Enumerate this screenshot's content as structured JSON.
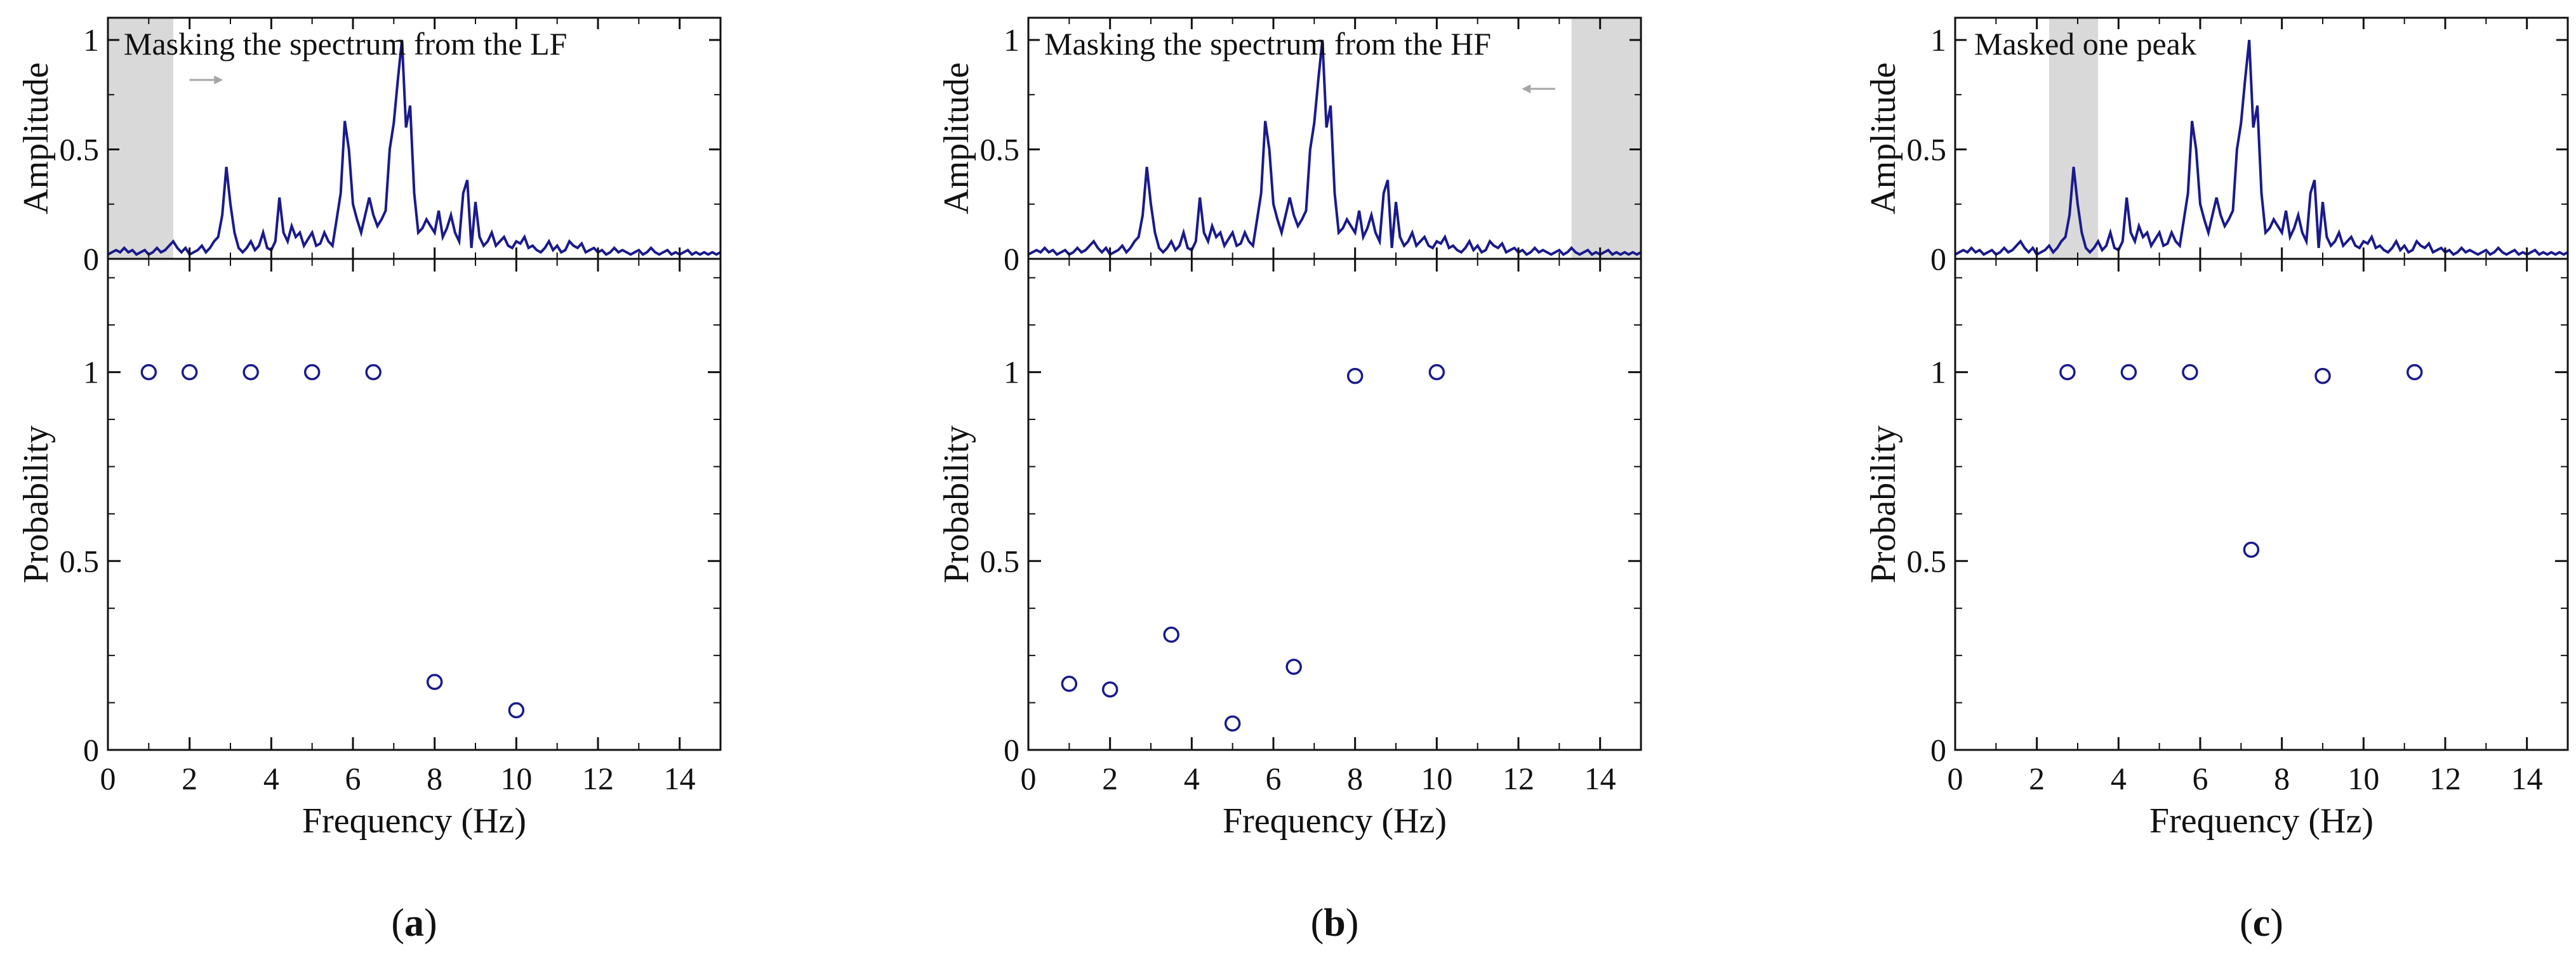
{
  "colors": {
    "series": "#1a1a8c",
    "mask": "#d9d9d9",
    "arrow": "#a6a6a6",
    "axis": "#111111"
  },
  "chart_data": [
    {
      "type": "line",
      "panel": "(a)",
      "panel_letter": "a",
      "annotation": "Masking the spectrum from the LF",
      "arrow_direction": "right",
      "mask_range": [
        0,
        1.6
      ],
      "x_key": "frequency",
      "xlim": [
        0,
        15
      ],
      "top": {
        "ylabel": "Amplitude",
        "ylim": [
          0,
          1.0
        ],
        "yticks": [
          0,
          0.5,
          1
        ],
        "ytick_labels": [
          "0",
          "0.5",
          "1"
        ]
      },
      "bottom": {
        "type": "scatter",
        "xlabel": "Frequency (Hz)",
        "ylabel": "Probability",
        "ylim": [
          0,
          1.3
        ],
        "xticks": [
          0,
          2,
          4,
          6,
          8,
          10,
          12,
          14
        ],
        "xtick_labels": [
          "0",
          "2",
          "4",
          "6",
          "8",
          "10",
          "12",
          "14"
        ],
        "yticks": [
          0,
          0.5,
          1
        ],
        "ytick_labels": [
          "0",
          "0.5",
          "1"
        ],
        "marker": "open-circle",
        "x": [
          1,
          2,
          3.5,
          5,
          6.5,
          8,
          10
        ],
        "y": [
          1.0,
          1.0,
          1.0,
          1.0,
          1.0,
          0.18,
          0.105
        ]
      }
    },
    {
      "type": "line",
      "panel": "(b)",
      "panel_letter": "b",
      "annotation": "Masking the spectrum from the HF",
      "arrow_direction": "left",
      "mask_range": [
        13.3,
        15
      ],
      "x_key": "frequency",
      "xlim": [
        0,
        15
      ],
      "top": {
        "ylabel": "Amplitude",
        "ylim": [
          0,
          1.0
        ],
        "yticks": [
          0,
          0.5,
          1
        ],
        "ytick_labels": [
          "0",
          "0.5",
          "1"
        ]
      },
      "bottom": {
        "type": "scatter",
        "xlabel": "Frequency (Hz)",
        "ylabel": "Probability",
        "ylim": [
          0,
          1.3
        ],
        "xticks": [
          0,
          2,
          4,
          6,
          8,
          10,
          12,
          14
        ],
        "xtick_labels": [
          "0",
          "2",
          "4",
          "6",
          "8",
          "10",
          "12",
          "14"
        ],
        "yticks": [
          0,
          0.5,
          1
        ],
        "ytick_labels": [
          "0",
          "0.5",
          "1"
        ],
        "marker": "open-circle",
        "x": [
          1,
          2,
          3.5,
          5,
          6.5,
          8,
          10
        ],
        "y": [
          0.175,
          0.16,
          0.305,
          0.07,
          0.22,
          0.99,
          1.0
        ]
      }
    },
    {
      "type": "line",
      "panel": "(c)",
      "panel_letter": "c",
      "annotation": "Masked one peak",
      "arrow_direction": "none",
      "mask_range": [
        2.3,
        3.5
      ],
      "x_key": "frequency",
      "xlim": [
        0,
        15
      ],
      "top": {
        "ylabel": "Amplitude",
        "ylim": [
          0,
          1.0
        ],
        "yticks": [
          0,
          0.5,
          1
        ],
        "ytick_labels": [
          "0",
          "0.5",
          "1"
        ]
      },
      "bottom": {
        "type": "scatter",
        "xlabel": "Frequency (Hz)",
        "ylabel": "Probability",
        "ylim": [
          0,
          1.3
        ],
        "xticks": [
          0,
          2,
          4,
          6,
          8,
          10,
          12,
          14
        ],
        "xtick_labels": [
          "0",
          "2",
          "4",
          "6",
          "8",
          "10",
          "12",
          "14"
        ],
        "yticks": [
          0,
          0.5,
          1
        ],
        "ytick_labels": [
          "0",
          "0.5",
          "1"
        ],
        "marker": "open-circle",
        "x": [
          2.75,
          4.25,
          5.75,
          7.25,
          9,
          11.25
        ],
        "y": [
          1.0,
          1.0,
          1.0,
          0.53,
          0.99,
          1.0
        ]
      }
    }
  ],
  "spectrum": {
    "xlabel_unit": "Hz",
    "frequency": [
      0,
      0.1,
      0.2,
      0.3,
      0.4,
      0.5,
      0.6,
      0.7,
      0.8,
      0.9,
      1.0,
      1.1,
      1.2,
      1.3,
      1.4,
      1.5,
      1.6,
      1.7,
      1.8,
      1.9,
      2.0,
      2.1,
      2.2,
      2.3,
      2.4,
      2.5,
      2.6,
      2.7,
      2.8,
      2.9,
      3.0,
      3.1,
      3.2,
      3.3,
      3.4,
      3.5,
      3.6,
      3.7,
      3.8,
      3.9,
      4.0,
      4.1,
      4.2,
      4.3,
      4.4,
      4.5,
      4.6,
      4.7,
      4.8,
      4.9,
      5.0,
      5.1,
      5.2,
      5.3,
      5.4,
      5.5,
      5.6,
      5.7,
      5.8,
      5.9,
      6.0,
      6.1,
      6.2,
      6.3,
      6.4,
      6.5,
      6.6,
      6.7,
      6.8,
      6.9,
      7.0,
      7.1,
      7.2,
      7.3,
      7.4,
      7.5,
      7.6,
      7.7,
      7.8,
      7.9,
      8.0,
      8.1,
      8.2,
      8.3,
      8.4,
      8.5,
      8.6,
      8.7,
      8.8,
      8.9,
      9.0,
      9.1,
      9.2,
      9.3,
      9.4,
      9.5,
      9.6,
      9.7,
      9.8,
      9.9,
      10.0,
      10.1,
      10.2,
      10.3,
      10.4,
      10.5,
      10.6,
      10.7,
      10.8,
      10.9,
      11.0,
      11.1,
      11.2,
      11.3,
      11.4,
      11.5,
      11.6,
      11.7,
      11.8,
      11.9,
      12.0,
      12.1,
      12.2,
      12.3,
      12.4,
      12.5,
      12.6,
      12.7,
      12.8,
      12.9,
      13.0,
      13.1,
      13.2,
      13.3,
      13.4,
      13.5,
      13.6,
      13.7,
      13.8,
      13.9,
      14.0,
      14.1,
      14.2,
      14.3,
      14.4,
      14.5,
      14.6,
      14.7,
      14.8,
      14.9,
      15.0
    ],
    "amplitude": [
      0.02,
      0.03,
      0.04,
      0.03,
      0.05,
      0.03,
      0.04,
      0.02,
      0.03,
      0.04,
      0.02,
      0.03,
      0.05,
      0.03,
      0.04,
      0.06,
      0.08,
      0.05,
      0.03,
      0.05,
      0.02,
      0.03,
      0.04,
      0.06,
      0.03,
      0.05,
      0.08,
      0.1,
      0.2,
      0.42,
      0.25,
      0.12,
      0.05,
      0.03,
      0.05,
      0.08,
      0.04,
      0.06,
      0.12,
      0.05,
      0.04,
      0.08,
      0.28,
      0.12,
      0.08,
      0.15,
      0.1,
      0.12,
      0.06,
      0.09,
      0.12,
      0.06,
      0.07,
      0.12,
      0.08,
      0.06,
      0.18,
      0.3,
      0.63,
      0.5,
      0.25,
      0.18,
      0.12,
      0.2,
      0.28,
      0.2,
      0.15,
      0.18,
      0.22,
      0.5,
      0.62,
      0.82,
      1.0,
      0.6,
      0.7,
      0.3,
      0.12,
      0.14,
      0.18,
      0.15,
      0.12,
      0.22,
      0.1,
      0.14,
      0.2,
      0.12,
      0.08,
      0.3,
      0.36,
      0.05,
      0.26,
      0.1,
      0.06,
      0.08,
      0.12,
      0.06,
      0.08,
      0.1,
      0.06,
      0.05,
      0.08,
      0.07,
      0.1,
      0.05,
      0.06,
      0.04,
      0.03,
      0.05,
      0.08,
      0.04,
      0.06,
      0.03,
      0.04,
      0.08,
      0.06,
      0.05,
      0.07,
      0.03,
      0.04,
      0.05,
      0.03,
      0.04,
      0.02,
      0.03,
      0.05,
      0.03,
      0.04,
      0.03,
      0.02,
      0.03,
      0.04,
      0.02,
      0.03,
      0.05,
      0.03,
      0.02,
      0.03,
      0.04,
      0.02,
      0.03,
      0.02,
      0.03,
      0.04,
      0.02,
      0.03,
      0.02,
      0.03,
      0.02,
      0.03,
      0.02,
      0.03
    ]
  }
}
